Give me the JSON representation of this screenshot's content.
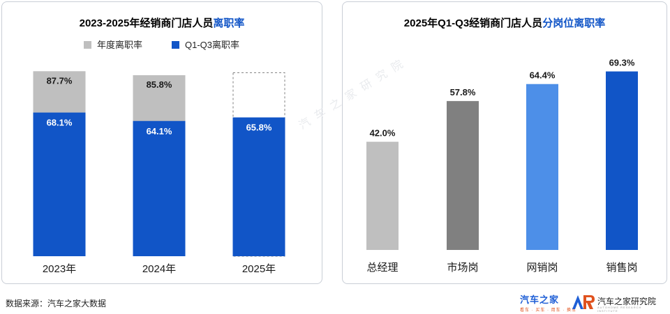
{
  "chart_data": [
    {
      "type": "bar",
      "title_prefix": "2023-2025年经销商门店人员",
      "title_highlight": "离职率",
      "categories": [
        "2023年",
        "2024年",
        "2025年"
      ],
      "series": [
        {
          "name": "年度离职率",
          "color": "#bfbfbf",
          "values": [
            87.7,
            85.8,
            null
          ],
          "labels": [
            "87.7%",
            "85.8%",
            ""
          ]
        },
        {
          "name": "Q1-Q3离职率",
          "color": "#1155c7",
          "values": [
            68.1,
            64.1,
            65.8
          ],
          "labels": [
            "68.1%",
            "64.1%",
            "65.8%"
          ]
        }
      ],
      "ylim": [
        0,
        100
      ],
      "grid": false,
      "legend": "top-center"
    },
    {
      "type": "bar",
      "title_prefix": "2025年Q1-Q3经销商门店人员",
      "title_highlight": "分岗位离职率",
      "categories": [
        "总经理",
        "市场岗",
        "网销岗",
        "销售岗"
      ],
      "values": [
        42.0,
        57.8,
        64.4,
        69.3
      ],
      "labels": [
        "42.0%",
        "57.8%",
        "64.4%",
        "69.3%"
      ],
      "colors": [
        "#bfbfbf",
        "#808080",
        "#4d8fe8",
        "#1155c7"
      ],
      "ylim": [
        0,
        80
      ],
      "grid": false
    }
  ],
  "accent_color": "#1155c7",
  "footer": {
    "source": "数据来源：汽车之家大数据",
    "brand_main": "汽车之家",
    "brand_sub": "看车 · 买车 · 用车 · 换车",
    "institute_name": "汽车之家研究院",
    "institute_en": "AUTOHOME RESEARCH INSTITUTE",
    "watermark": "汽车之家研究院"
  }
}
